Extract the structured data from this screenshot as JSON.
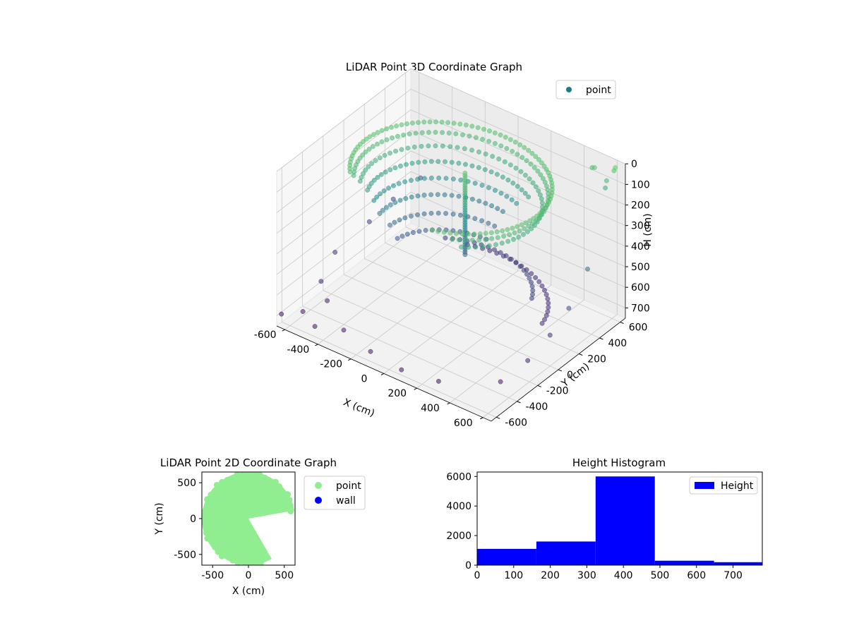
{
  "chart_data": [
    {
      "type": "scatter",
      "projection": "3d",
      "title": "LiDAR Point 3D Coordinate Graph",
      "xlabel": "X (cm)",
      "ylabel": "Y (cm)",
      "zlabel": "H (cm)",
      "xlim": [
        -650,
        650
      ],
      "ylim": [
        -650,
        650
      ],
      "zlim": [
        0,
        750
      ],
      "z_inverted": true,
      "x_ticks": [
        -600,
        -400,
        -200,
        0,
        200,
        400,
        600
      ],
      "y_ticks": [
        -600,
        -400,
        -200,
        0,
        200,
        400,
        600
      ],
      "z_ticks": [
        0,
        100,
        200,
        300,
        400,
        500,
        600,
        700
      ],
      "grid": true,
      "legend": {
        "position": "top-right",
        "entries": [
          {
            "label": "point",
            "color": "#1f7a87"
          }
        ]
      },
      "colormap": "viridis",
      "series": [
        {
          "name": "point",
          "rings": [
            {
              "r": 520,
              "h": 50,
              "a0": -1.2,
              "a1": 3.8,
              "step": 0.06
            },
            {
              "r": 500,
              "h": 90,
              "a0": -1.0,
              "a1": 3.7,
              "step": 0.07
            },
            {
              "r": 470,
              "h": 140,
              "a0": -0.9,
              "a1": 3.6,
              "step": 0.08
            },
            {
              "r": 440,
              "h": 200,
              "a0": 1.0,
              "a1": 3.5,
              "step": 0.08
            },
            {
              "r": 420,
              "h": 270,
              "a0": 1.2,
              "a1": 3.4,
              "step": 0.09
            },
            {
              "r": 400,
              "h": 340,
              "a0": 1.4,
              "a1": 3.3,
              "step": 0.09
            },
            {
              "r": 380,
              "h": 420,
              "a0": 1.5,
              "a1": 3.2,
              "step": 0.1
            },
            {
              "r": 360,
              "h": 490,
              "a0": 1.6,
              "a1": 3.1,
              "step": 0.1
            },
            {
              "r": 420,
              "h": 560,
              "a0": 0.4,
              "a1": 2.2,
              "step": 0.09
            },
            {
              "r": 500,
              "h": 620,
              "a0": 0.2,
              "a1": 2.0,
              "step": 0.08
            }
          ],
          "column": {
            "x": 60,
            "y": 40,
            "h_from": 20,
            "h_to": 420
          },
          "outliers": [
            [
              -640,
              -620,
              700
            ],
            [
              -560,
              -540,
              690
            ],
            [
              -600,
              -300,
              650
            ],
            [
              -450,
              -600,
              700
            ],
            [
              620,
              600,
              10
            ],
            [
              600,
              620,
              40
            ],
            [
              580,
              580,
              80
            ],
            [
              560,
              600,
              130
            ],
            [
              520,
              560,
              30
            ],
            [
              480,
              600,
              60
            ],
            [
              640,
              300,
              380
            ],
            [
              620,
              150,
              520
            ],
            [
              600,
              0,
              600
            ],
            [
              590,
              -200,
              650
            ],
            [
              550,
              -400,
              690
            ],
            [
              300,
              -600,
              700
            ],
            [
              100,
              -640,
              700
            ],
            [
              -100,
              -620,
              690
            ],
            [
              -300,
              -560,
              680
            ],
            [
              -500,
              -400,
              670
            ],
            [
              -640,
              -100,
              600
            ],
            [
              -620,
              200,
              560
            ],
            [
              -600,
              400,
              520
            ],
            [
              -560,
              600,
              480
            ]
          ]
        }
      ]
    },
    {
      "type": "scatter",
      "title": "LiDAR Point 2D Coordinate Graph",
      "xlabel": "X (cm)",
      "ylabel": "Y (cm)",
      "xlim": [
        -650,
        650
      ],
      "ylim": [
        -650,
        650
      ],
      "x_ticks": [
        -500,
        0,
        500
      ],
      "y_ticks": [
        -500,
        0,
        500
      ],
      "grid": false,
      "legend": {
        "position": "outside-right",
        "entries": [
          {
            "label": "point",
            "color": "#90ee90"
          },
          {
            "label": "wall",
            "color": "#0000ff"
          }
        ]
      },
      "series": [
        {
          "name": "point",
          "color": "#90ee90",
          "shape": "disk-with-notch",
          "radius": 650,
          "notch_from_deg": -60,
          "notch_to_deg": 10
        },
        {
          "name": "wall",
          "color": "#0000ff",
          "points": []
        }
      ]
    },
    {
      "type": "bar",
      "title": "Height Histogram",
      "xlabel": "",
      "ylabel": "",
      "bin_edges": [
        0,
        162,
        324,
        486,
        648,
        780
      ],
      "values": [
        1100,
        1600,
        6000,
        300,
        200
      ],
      "xlim": [
        0,
        780
      ],
      "ylim": [
        0,
        6300
      ],
      "x_ticks": [
        0,
        100,
        200,
        300,
        400,
        500,
        600,
        700
      ],
      "y_ticks": [
        0,
        2000,
        4000,
        6000
      ],
      "legend": {
        "position": "top-right",
        "entries": [
          {
            "label": "Height",
            "color": "#0000ff"
          }
        ]
      },
      "series": [
        {
          "name": "Height",
          "color": "#0000ff"
        }
      ]
    }
  ]
}
